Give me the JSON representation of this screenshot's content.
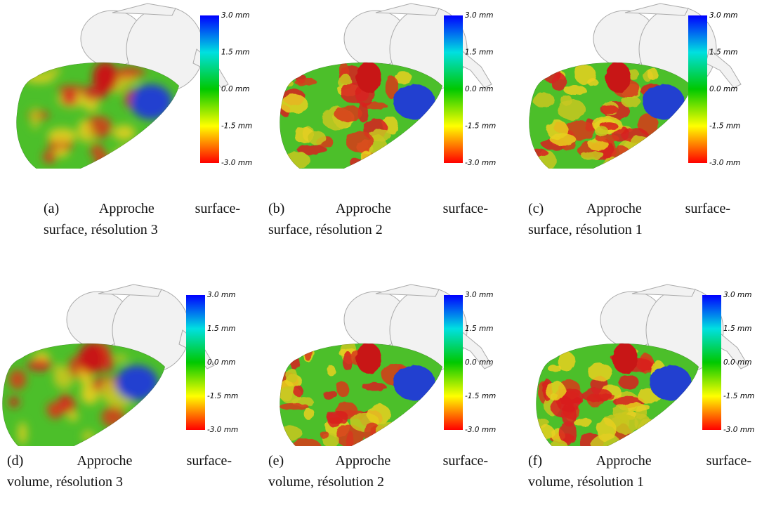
{
  "colorbar_labels": [
    "3.0 mm",
    "1.5 mm",
    "0.0 mm",
    "-1.5 mm",
    "-3.0 mm"
  ],
  "panels": [
    {
      "caption": [
        "(a) Approche surface-",
        "surface, résolution 3"
      ]
    },
    {
      "caption": [
        "(b) Approche surface-",
        "surface, résolution 2"
      ]
    },
    {
      "caption": [
        "(c) Approche surface-",
        "surface, résolution 1"
      ]
    },
    {
      "caption": [
        "(d) Approche surface-",
        "volume, résolution 3"
      ]
    },
    {
      "caption": [
        "(e) Approche surface-",
        "volume, résolution 2"
      ]
    },
    {
      "caption": [
        "(f) Approche surface-",
        "volume, résolution 1"
      ]
    }
  ]
}
